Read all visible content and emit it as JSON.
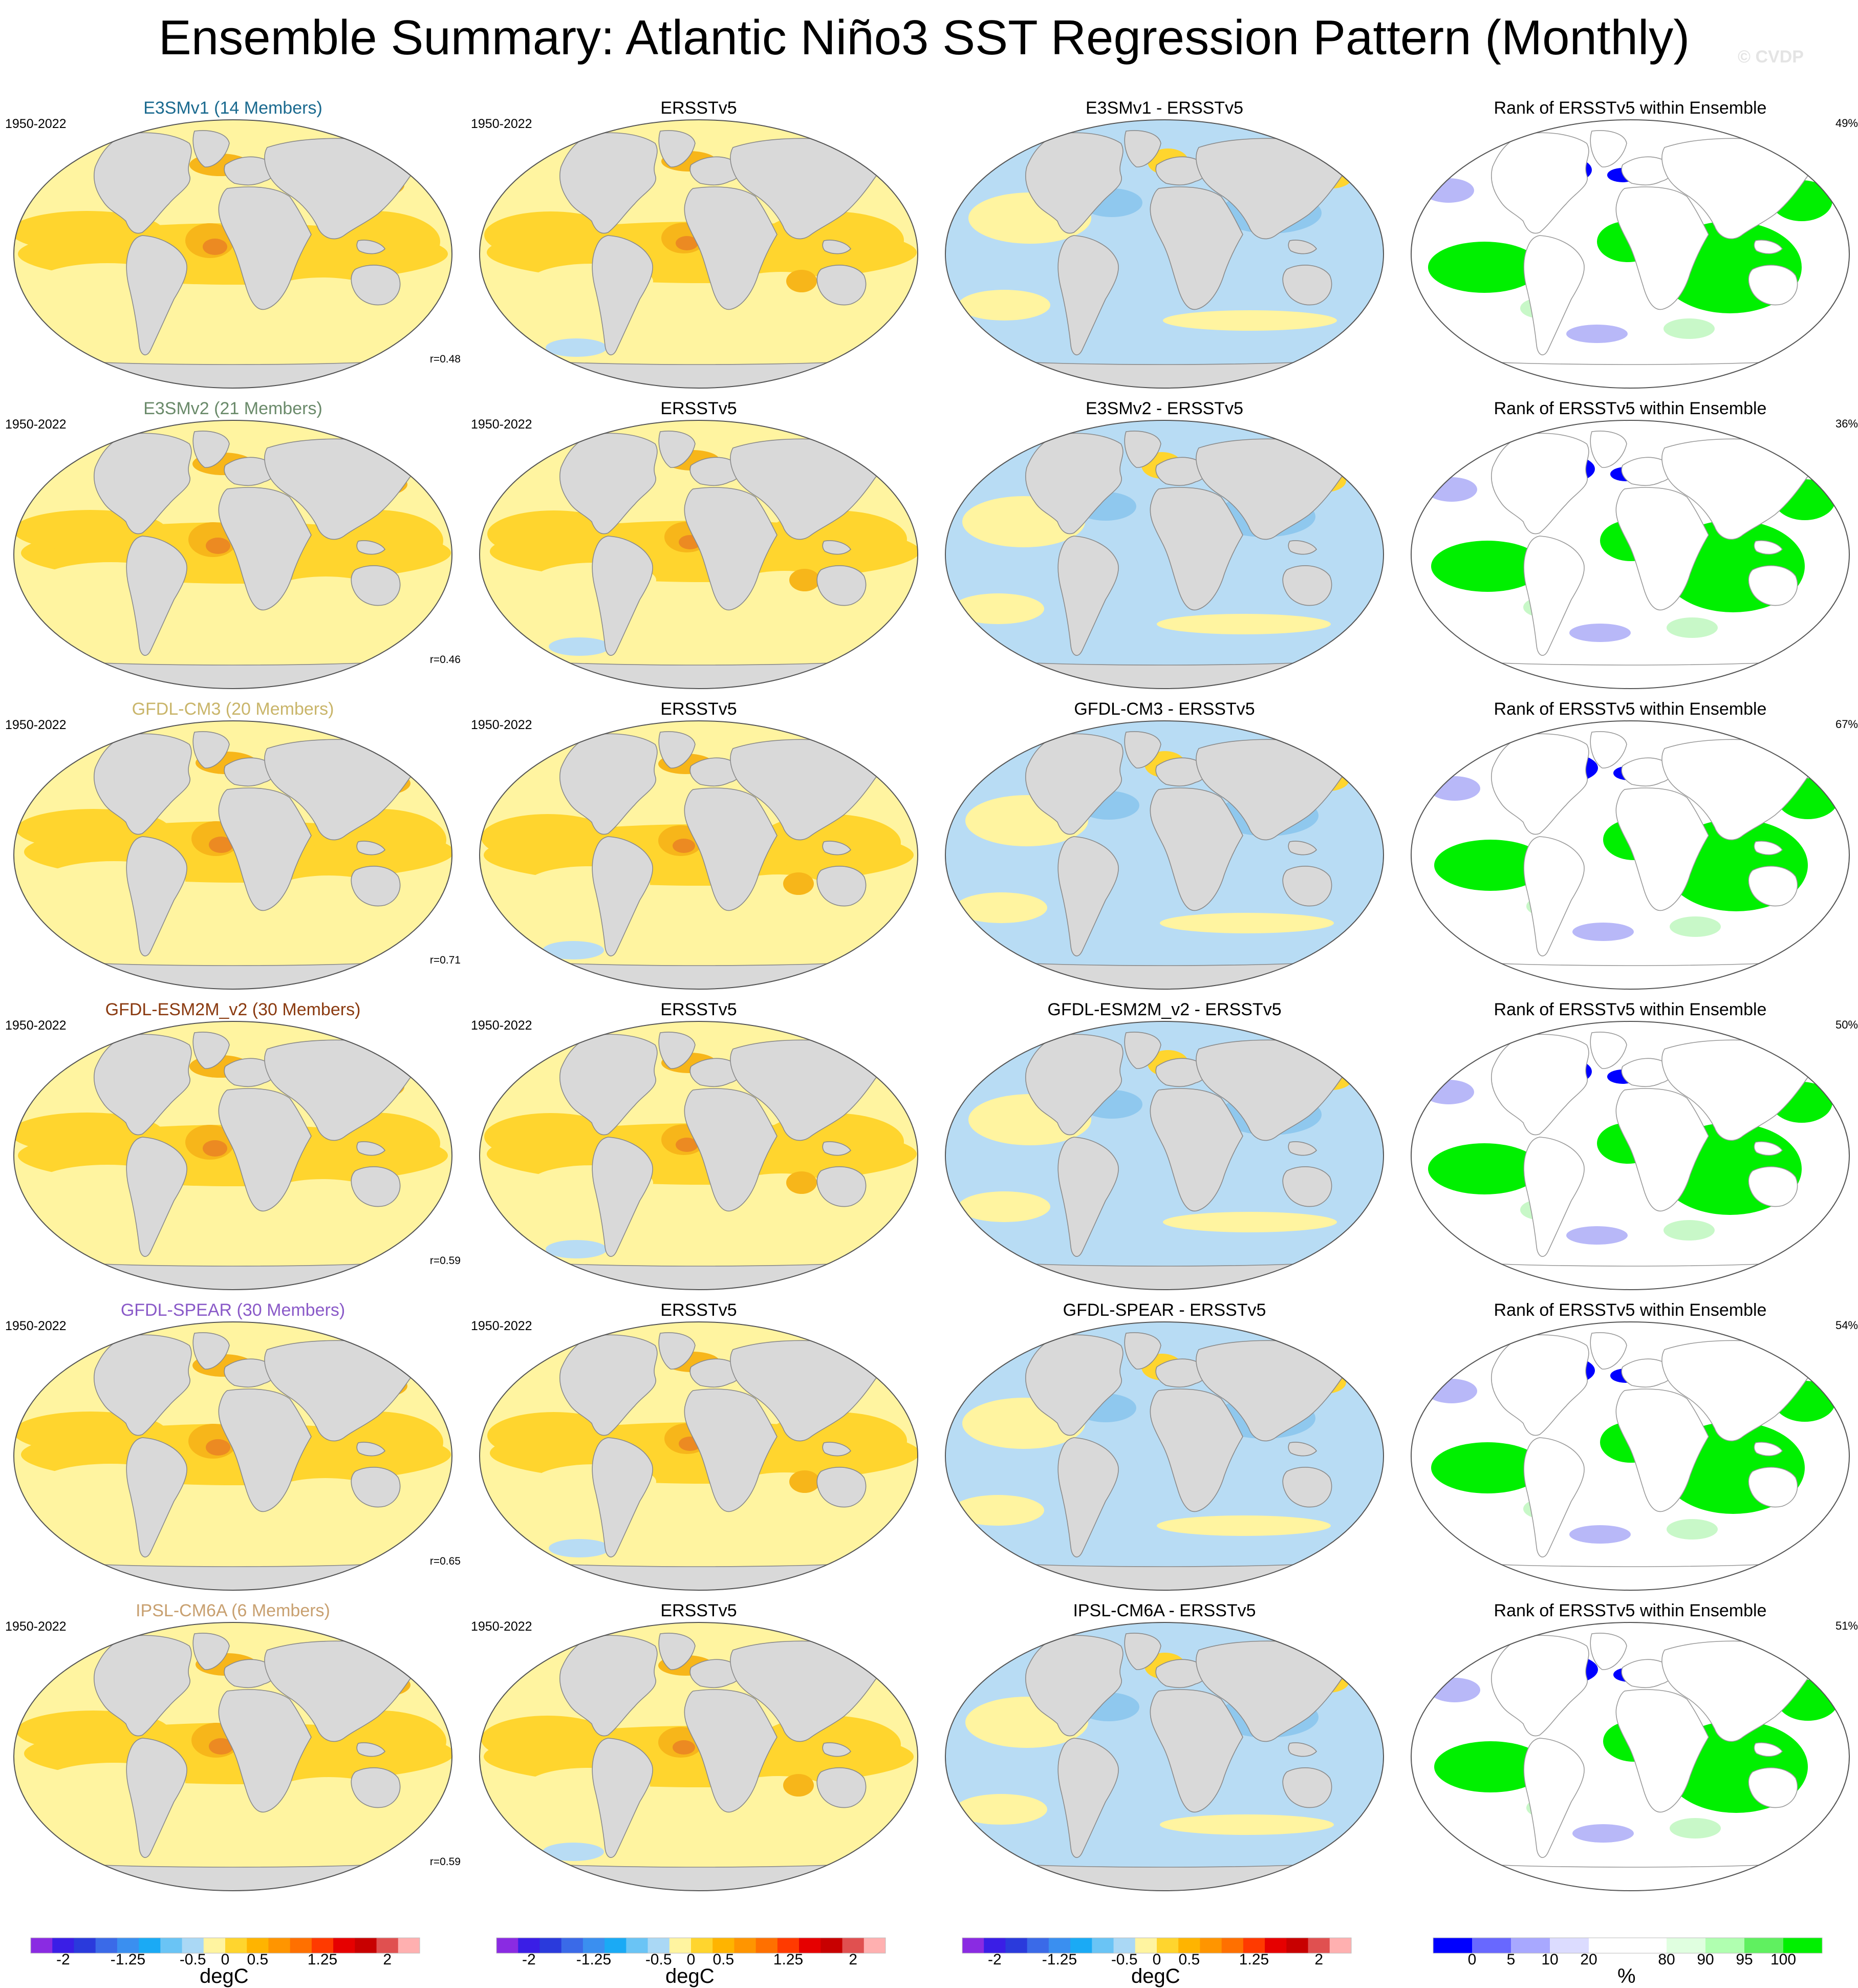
{
  "title": "Ensemble Summary: Atlantic Niño3 SST Regression Pattern (Monthly)",
  "watermark": "© CVDP",
  "years": "1950-2022",
  "colors": {
    "land": "#d9d9d9",
    "coast": "#8a8a8a",
    "ocean_pos1": "#fff4a0",
    "ocean_pos2": "#ffd52e",
    "ocean_pos3": "#f7b61a",
    "ocean_pos4": "#ec8a22",
    "ocean_neg1": "#b8dcf4",
    "ocean_neg2": "#8fc8ee",
    "rank_blue": "#0000ff",
    "rank_green": "#00f000",
    "rank_lightblue": "#b8b8f8",
    "rank_lightgreen": "#c8f8c8"
  },
  "rows": [
    {
      "model": "E3SMv1 (14 Members)",
      "model_color": "#1a6a8f",
      "corr": "r=0.48",
      "obs": "ERSSTv5",
      "diff": "E3SMv1 - ERSSTv5",
      "rank_title": "Rank of ERSSTv5 within Ensemble",
      "rank_pct": "49%"
    },
    {
      "model": "E3SMv2 (21 Members)",
      "model_color": "#6a8a6a",
      "corr": "r=0.46",
      "obs": "ERSSTv5",
      "diff": "E3SMv2 - ERSSTv5",
      "rank_title": "Rank of ERSSTv5 within Ensemble",
      "rank_pct": "36%"
    },
    {
      "model": "GFDL-CM3 (20 Members)",
      "model_color": "#c9b56a",
      "corr": "r=0.71",
      "obs": "ERSSTv5",
      "diff": "GFDL-CM3 - ERSSTv5",
      "rank_title": "Rank of ERSSTv5 within Ensemble",
      "rank_pct": "67%"
    },
    {
      "model": "GFDL-ESM2M_v2 (30 Members)",
      "model_color": "#8a3a10",
      "corr": "r=0.59",
      "obs": "ERSSTv5",
      "diff": "GFDL-ESM2M_v2 - ERSSTv5",
      "rank_title": "Rank of ERSSTv5 within Ensemble",
      "rank_pct": "50%"
    },
    {
      "model": "GFDL-SPEAR (30 Members)",
      "model_color": "#8a5ac8",
      "corr": "r=0.65",
      "obs": "ERSSTv5",
      "diff": "GFDL-SPEAR - ERSSTv5",
      "rank_title": "Rank of ERSSTv5 within Ensemble",
      "rank_pct": "54%"
    },
    {
      "model": "IPSL-CM6A (6 Members)",
      "model_color": "#c8a070",
      "corr": "r=0.59",
      "obs": "ERSSTv5",
      "diff": "IPSL-CM6A - ERSSTv5",
      "rank_title": "Rank of ERSSTv5 within Ensemble",
      "rank_pct": "51%"
    }
  ],
  "colorbar_sst": {
    "colors": [
      "#8a2be2",
      "#3a1ee6",
      "#2a3adc",
      "#3a6ae8",
      "#3a8ff0",
      "#1aaaf5",
      "#6ac4f5",
      "#aad8f5",
      "#fff4a0",
      "#ffd52e",
      "#ffb400",
      "#ff9500",
      "#ff7000",
      "#ff3a00",
      "#e60000",
      "#c80000",
      "#e05050",
      "#ffb0b0"
    ],
    "labels": [
      "-2",
      "-1.25",
      "-0.5",
      "0",
      "0.5",
      "1.25",
      "2"
    ],
    "units": "degC"
  },
  "colorbar_rank": {
    "colors": [
      "#0000ff",
      "#6868ff",
      "#a8a8ff",
      "#dcdcff",
      "#ffffff",
      "#ffffff",
      "#e0ffe0",
      "#b0ffb0",
      "#60f060",
      "#00f000"
    ],
    "labels": [
      "0",
      "5",
      "10",
      "20",
      "80",
      "90",
      "95",
      "100"
    ],
    "units": "%"
  }
}
